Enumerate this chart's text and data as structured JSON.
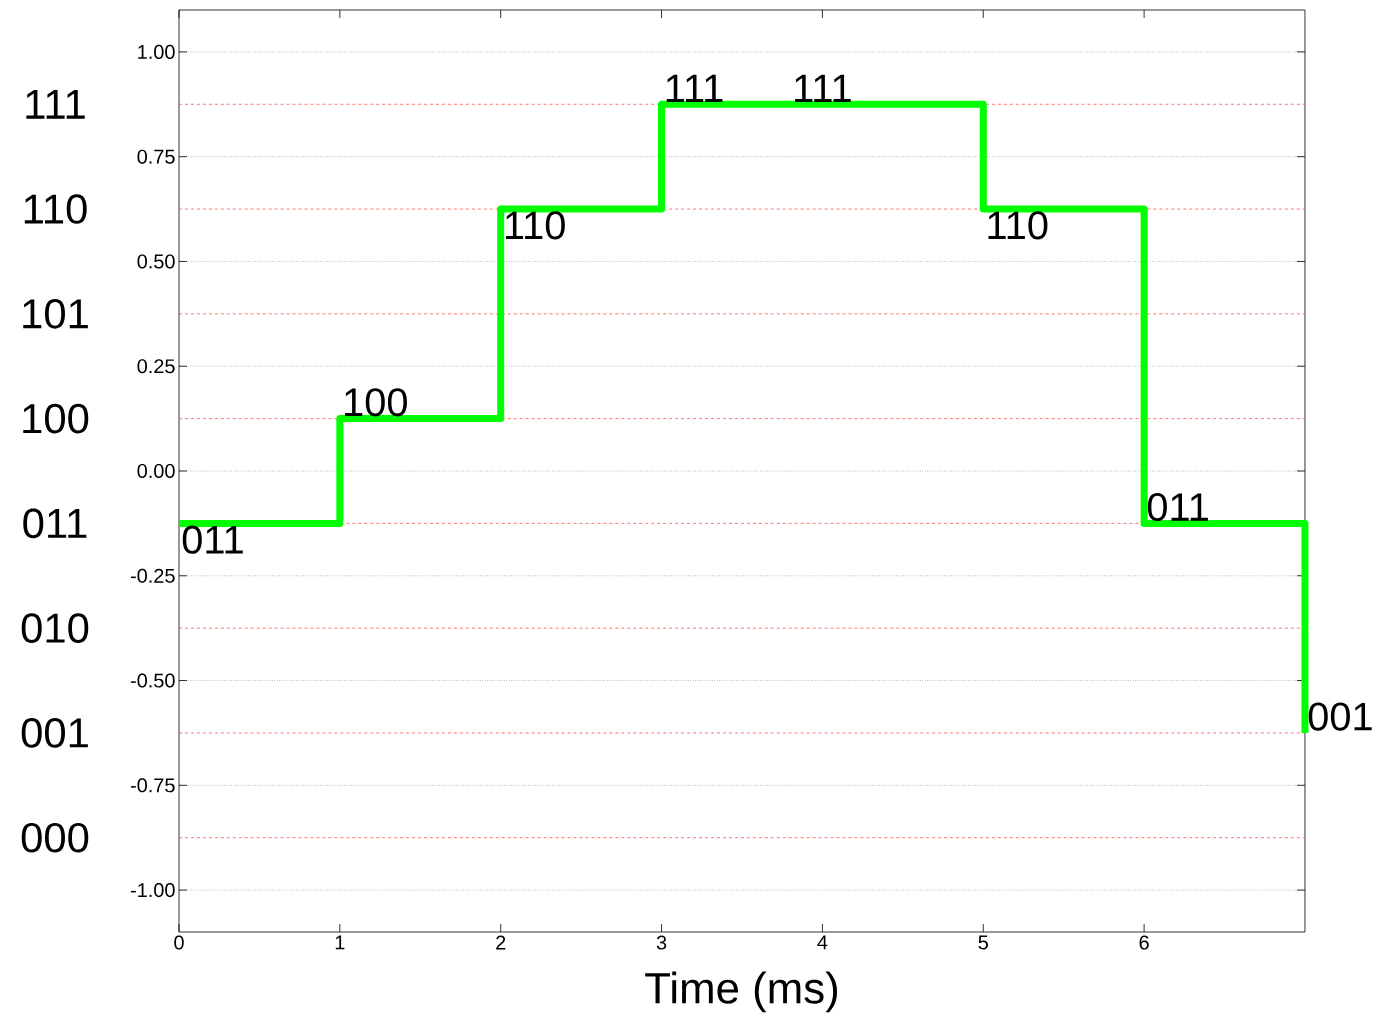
{
  "chart_data": {
    "type": "step",
    "xlabel": "Time (ms)",
    "x": [
      0,
      1,
      2,
      3,
      4,
      5,
      6,
      7
    ],
    "series": [
      {
        "color": "#00ff00",
        "values": [
          -0.125,
          0.125,
          0.625,
          0.875,
          0.875,
          0.625,
          -0.125,
          -0.625
        ]
      }
    ],
    "xlim": [
      0,
      7
    ],
    "ylim": [
      -1.1,
      1.1
    ],
    "xticks": [
      0,
      1,
      2,
      3,
      4,
      5,
      6
    ],
    "yticks": [
      {
        "value": -1,
        "label": "-1.00"
      },
      {
        "value": -0.75,
        "label": "-0.75"
      },
      {
        "value": -0.5,
        "label": "-0.50"
      },
      {
        "value": -0.25,
        "label": "-0.25"
      },
      {
        "value": 0,
        "label": "0.00"
      },
      {
        "value": 0.25,
        "label": "0.25"
      },
      {
        "value": 0.5,
        "label": "0.50"
      },
      {
        "value": 0.75,
        "label": "0.75"
      },
      {
        "value": 1,
        "label": "1.00"
      }
    ],
    "grid": "y",
    "line_style": "solid",
    "marker": "none",
    "ref_lines": [
      {
        "axis": "y",
        "value": 0.875,
        "color": "#ff5050",
        "line_style": "dashed"
      },
      {
        "axis": "y",
        "value": 0.625,
        "color": "#ff5050",
        "line_style": "dashed"
      },
      {
        "axis": "y",
        "value": 0.375,
        "color": "#ff5050",
        "line_style": "dashed"
      },
      {
        "axis": "y",
        "value": 0.125,
        "color": "#ff5050",
        "line_style": "dashed"
      },
      {
        "axis": "y",
        "value": -0.125,
        "color": "#ff5050",
        "line_style": "dashed"
      },
      {
        "axis": "y",
        "value": -0.375,
        "color": "#ff5050",
        "line_style": "dashed"
      },
      {
        "axis": "y",
        "value": -0.625,
        "color": "#ff5050",
        "line_style": "dashed"
      },
      {
        "axis": "y",
        "value": -0.875,
        "color": "#ff5050",
        "line_style": "dashed"
      }
    ],
    "annotations": [
      {
        "text": "011",
        "x": 0,
        "y": -0.125
      },
      {
        "text": "100",
        "x": 1,
        "y": 0.125
      },
      {
        "text": "110",
        "x": 2,
        "y": 0.625
      },
      {
        "text": "111",
        "x": 3,
        "y": 0.875
      },
      {
        "text": "111",
        "x": 4,
        "y": 0.875
      },
      {
        "text": "110",
        "x": 5,
        "y": 0.625
      },
      {
        "text": "011",
        "x": 6,
        "y": -0.125
      },
      {
        "text": "001",
        "x": 7,
        "y": -0.625
      },
      "111",
      "110",
      "101",
      "100",
      "011",
      "010",
      "001",
      "000"
    ]
  }
}
